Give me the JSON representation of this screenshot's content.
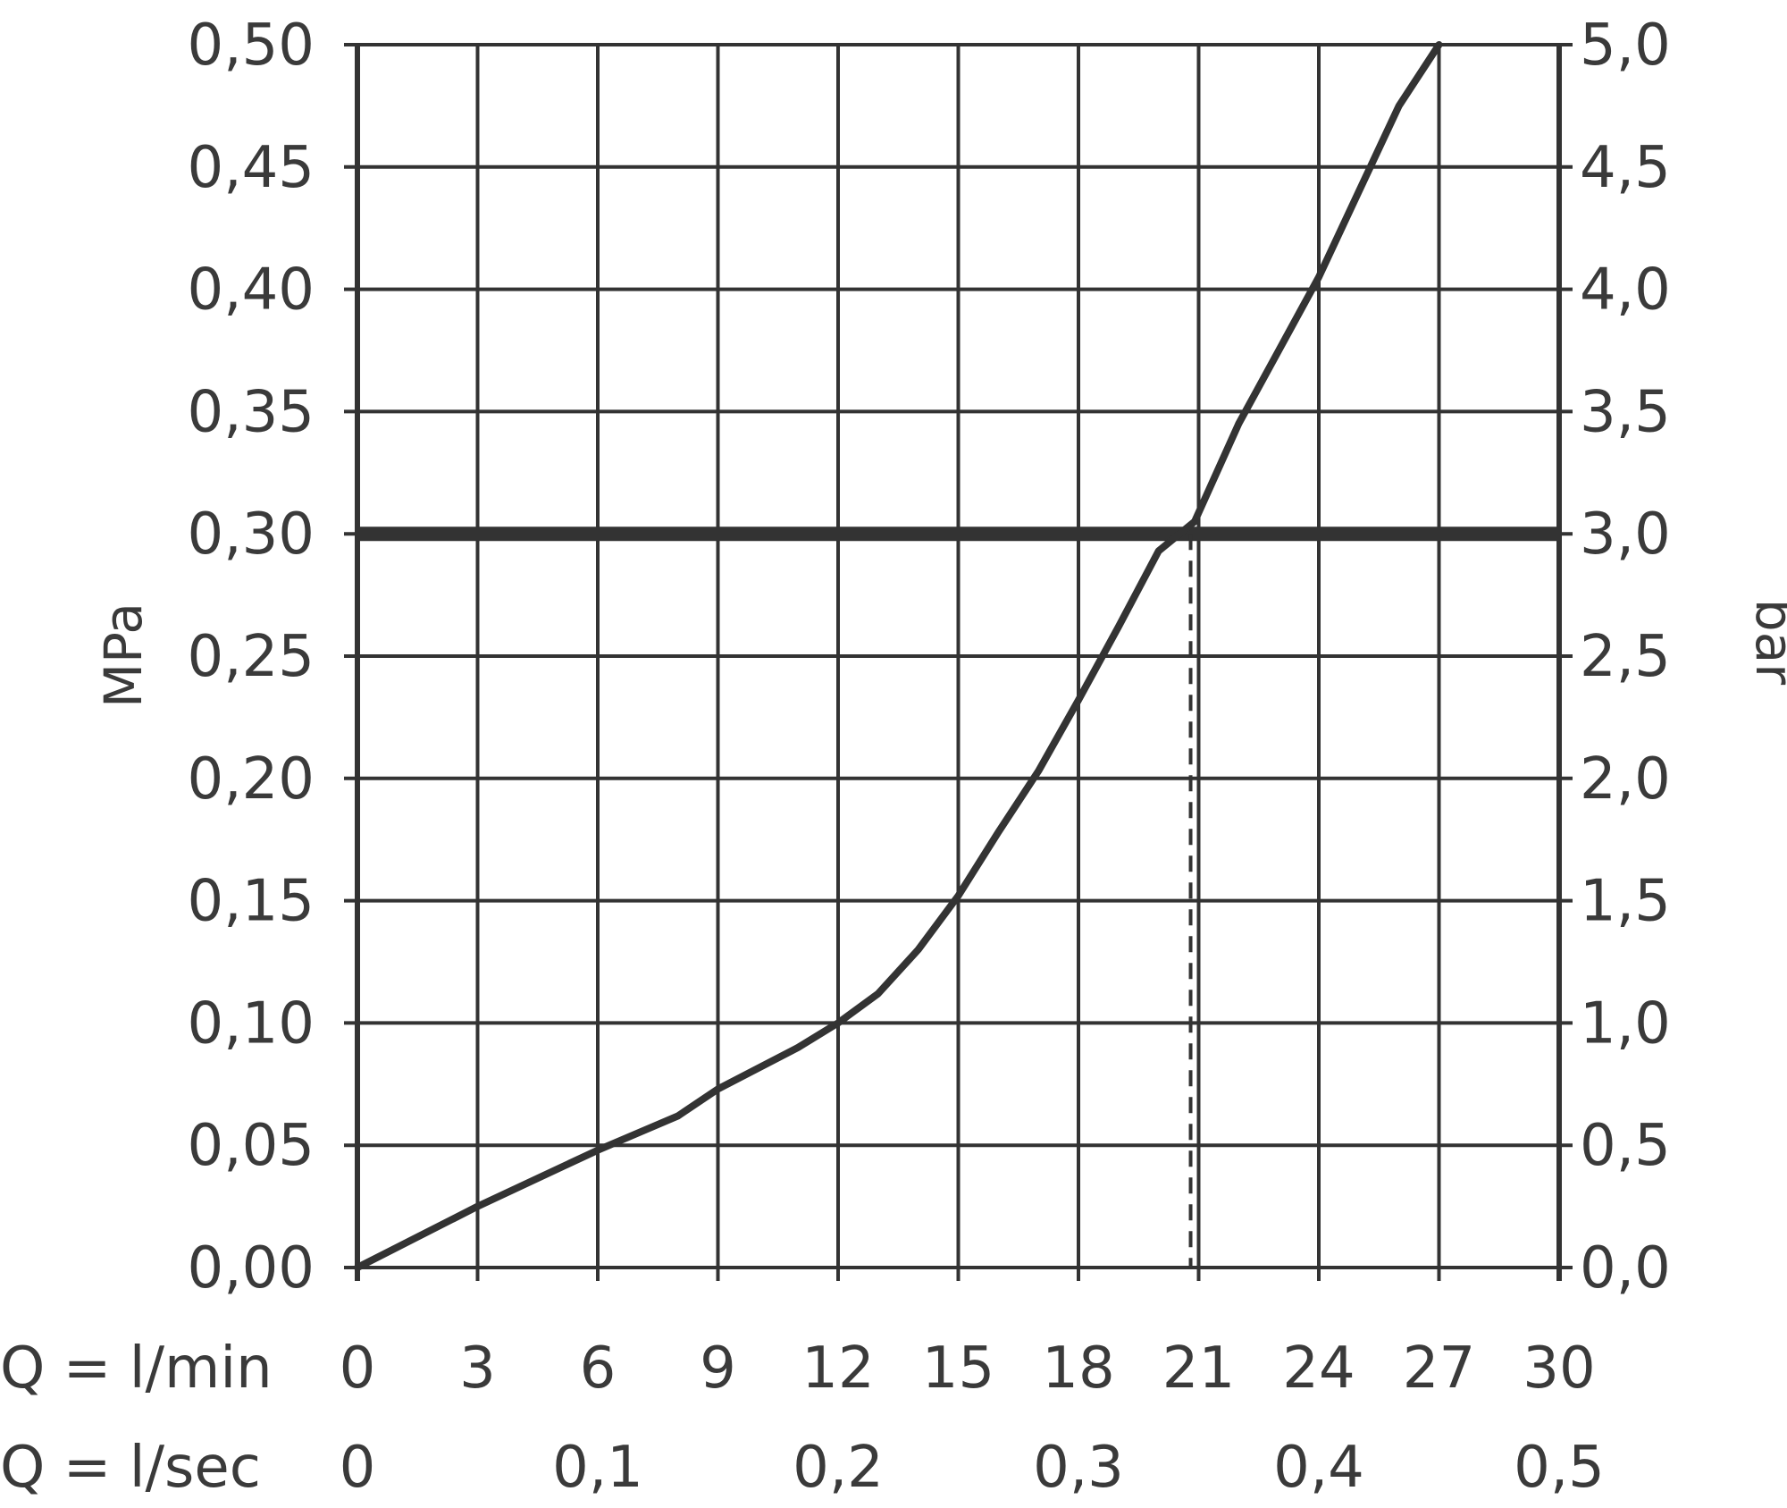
{
  "chart_data": {
    "type": "line",
    "ylabel_left": "MPa",
    "ylabel_right": "bar",
    "ylim": [
      0,
      0.5
    ],
    "xlim": [
      0,
      30
    ],
    "left_ticks": [
      "0,00",
      "0,05",
      "0,10",
      "0,15",
      "0,20",
      "0,25",
      "0,30",
      "0,35",
      "0,40",
      "0,45",
      "0,50"
    ],
    "right_ticks": [
      "0,0",
      "0,5",
      "1,0",
      "1,5",
      "2,0",
      "2,5",
      "3,0",
      "3,5",
      "4,0",
      "4,5",
      "5,0"
    ],
    "x_rows": [
      {
        "label": "Q = l/min",
        "ticks": [
          {
            "x": 0,
            "text": "0"
          },
          {
            "x": 3,
            "text": "3"
          },
          {
            "x": 6,
            "text": "6"
          },
          {
            "x": 9,
            "text": "9"
          },
          {
            "x": 12,
            "text": "12"
          },
          {
            "x": 15,
            "text": "15"
          },
          {
            "x": 18,
            "text": "18"
          },
          {
            "x": 21,
            "text": "21"
          },
          {
            "x": 24,
            "text": "24"
          },
          {
            "x": 27,
            "text": "27"
          },
          {
            "x": 30,
            "text": "30"
          }
        ]
      },
      {
        "label": "Q = l/sec",
        "ticks": [
          {
            "x": 0,
            "text": "0"
          },
          {
            "x": 6,
            "text": "0,1"
          },
          {
            "x": 12,
            "text": "0,2"
          },
          {
            "x": 18,
            "text": "0,3"
          },
          {
            "x": 24,
            "text": "0,4"
          },
          {
            "x": 30,
            "text": "0,5"
          }
        ]
      }
    ],
    "series": [
      {
        "x": [
          0,
          3,
          6,
          8,
          9,
          11,
          12,
          13,
          14,
          15,
          16,
          17,
          18,
          19,
          20,
          20.9,
          22,
          23,
          24,
          25,
          26,
          27
        ],
        "y": [
          0,
          0.025,
          0.048,
          0.062,
          0.073,
          0.09,
          0.1,
          0.112,
          0.13,
          0.152,
          0.178,
          0.203,
          0.232,
          0.262,
          0.293,
          0.305,
          0.345,
          0.375,
          0.405,
          0.44,
          0.475,
          0.5
        ]
      }
    ],
    "reference_line_y": 0.3,
    "marker_x": 20.8,
    "grid": true,
    "colors": {
      "line": "#333333",
      "grid": "#333333",
      "text": "#3a3a3a"
    }
  }
}
